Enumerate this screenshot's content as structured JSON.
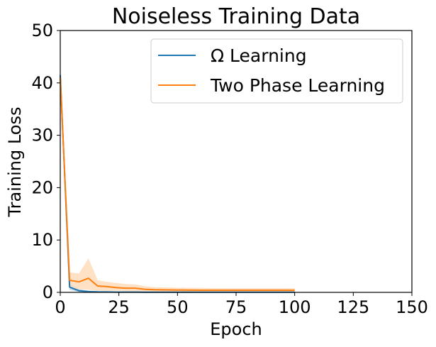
{
  "chart_data": {
    "type": "line",
    "title": "Noiseless Training Data",
    "xlabel": "Epoch",
    "ylabel": "Training Loss",
    "xlim": [
      0,
      150
    ],
    "ylim": [
      0,
      50
    ],
    "xticks": [
      "0",
      "25",
      "50",
      "75",
      "100",
      "125",
      "150"
    ],
    "yticks": [
      "0",
      "10",
      "20",
      "30",
      "40",
      "50"
    ],
    "grid": false,
    "legend_position": "top-right",
    "series": [
      {
        "name": "Ω Learning",
        "color": "#1f77b4",
        "x": [
          0,
          4,
          8,
          12,
          16,
          20,
          24,
          28,
          32,
          36,
          40,
          50,
          60,
          70,
          80,
          90,
          100
        ],
        "y": [
          41.5,
          1.0,
          0.3,
          0.15,
          0.1,
          0.08,
          0.06,
          0.05,
          0.05,
          0.04,
          0.04,
          0.03,
          0.03,
          0.03,
          0.03,
          0.03,
          0.03
        ],
        "band_low": [
          40.5,
          0.5,
          0.1,
          0.05,
          0.03,
          0.02,
          0.02,
          0.02,
          0.02,
          0.01,
          0.01,
          0.01,
          0.01,
          0.01,
          0.01,
          0.01,
          0.01
        ],
        "band_high": [
          42.5,
          1.8,
          0.6,
          0.3,
          0.2,
          0.15,
          0.12,
          0.1,
          0.1,
          0.08,
          0.08,
          0.06,
          0.06,
          0.06,
          0.06,
          0.06,
          0.06
        ]
      },
      {
        "name": "Two Phase Learning",
        "color": "#ff7f0e",
        "band_color": "#ffdcbc",
        "x": [
          0,
          4,
          8,
          12,
          16,
          20,
          24,
          28,
          32,
          36,
          40,
          50,
          60,
          70,
          80,
          90,
          100
        ],
        "y": [
          41.0,
          2.3,
          2.0,
          2.7,
          1.2,
          1.1,
          0.9,
          0.8,
          0.8,
          0.6,
          0.5,
          0.45,
          0.4,
          0.4,
          0.4,
          0.4,
          0.4
        ],
        "band_low": [
          39.5,
          0.8,
          0.6,
          0.5,
          0.3,
          0.3,
          0.3,
          0.25,
          0.2,
          0.2,
          0.15,
          0.1,
          0.1,
          0.1,
          0.1,
          0.1,
          0.1
        ],
        "band_high": [
          42.5,
          3.8,
          3.6,
          6.5,
          2.3,
          2.0,
          1.8,
          1.6,
          1.5,
          1.2,
          1.0,
          0.9,
          0.85,
          0.8,
          0.8,
          0.8,
          0.8
        ]
      }
    ]
  }
}
